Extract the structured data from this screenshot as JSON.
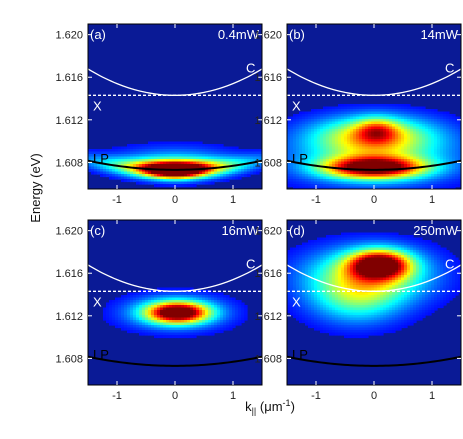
{
  "chart_data": {
    "type": "heatmap",
    "ylabel": "Energy (eV)",
    "xlabel_main": "k",
    "xlabel_sub": "||",
    "xlabel_unit_open": " (",
    "xlabel_unit_mu": "μm",
    "xlabel_unit_exp": "-1",
    "xlabel_unit_close": ")",
    "xlim": [
      -1.5,
      1.5
    ],
    "ylim": [
      1.6055,
      1.621
    ],
    "x_ticks": [
      -1,
      0,
      1
    ],
    "x_tick_labels": [
      "-1",
      "0",
      "1"
    ],
    "y_ticks": [
      1.608,
      1.612,
      1.616,
      1.62
    ],
    "y_tick_labels": [
      "1.608",
      "1.612",
      "1.616",
      "1.620"
    ],
    "exciton_energy": 1.6143,
    "cavity_curve": {
      "E0": 1.6143,
      "curvature": 0.0011
    },
    "lower_polariton_curve": {
      "E0": 1.6073,
      "curvature": 0.00038
    },
    "colors": {
      "background": "#0a1a96",
      "curve_upper": "#ffffff",
      "curve_lower": "#000000",
      "exciton_line": "#ffffff"
    },
    "panels": [
      {
        "label": "(a)",
        "power": "0.4mW",
        "curve_labels": {
          "C": "C",
          "X": "X",
          "LP": "LP"
        },
        "lp_label_dark": true,
        "emission": [
          {
            "x": 0.0,
            "y": 1.6073,
            "sx": 0.9,
            "sy": 0.0006,
            "amp": 0.7,
            "follow_lp": true
          },
          {
            "x": 0.0,
            "y": 1.6073,
            "sx": 0.35,
            "sy": 0.0005,
            "amp": 0.9,
            "follow_lp": true
          },
          {
            "x": 0.0,
            "y": 1.6083,
            "sx": 0.6,
            "sy": 0.0009,
            "amp": 0.2,
            "follow_lp": true
          }
        ]
      },
      {
        "label": "(b)",
        "power": "14mW",
        "curve_labels": {
          "C": "C",
          "X": "X",
          "LP": "LP"
        },
        "lp_label_dark": true,
        "emission": [
          {
            "x": 0.0,
            "y": 1.6075,
            "sx": 0.6,
            "sy": 0.0007,
            "amp": 0.95,
            "follow_lp": false
          },
          {
            "x": 0.0,
            "y": 1.6105,
            "sx": 0.75,
            "sy": 0.0013,
            "amp": 0.55,
            "follow_lp": false
          },
          {
            "x": 0.05,
            "y": 1.611,
            "sx": 0.25,
            "sy": 0.0008,
            "amp": 0.35,
            "follow_lp": false
          },
          {
            "x": 0.0,
            "y": 1.6083,
            "sx": 1.0,
            "sy": 0.0018,
            "amp": 0.3,
            "follow_lp": false
          }
        ]
      },
      {
        "label": "(c)",
        "power": "16mW",
        "curve_labels": {
          "C": "C",
          "X": "X",
          "LP": "LP"
        },
        "lp_label_dark": true,
        "emission": [
          {
            "x": 0.05,
            "y": 1.6123,
            "sx": 0.35,
            "sy": 0.00065,
            "amp": 0.95,
            "follow_lp": false
          },
          {
            "x": 0.0,
            "y": 1.6123,
            "sx": 0.6,
            "sy": 0.0011,
            "amp": 0.35,
            "follow_lp": false
          }
        ]
      },
      {
        "label": "(d)",
        "power": "250mW",
        "curve_labels": {
          "C": "C",
          "X": "X",
          "LP": "LP"
        },
        "lp_label_dark": true,
        "emission": [
          {
            "x": 0.1,
            "y": 1.6168,
            "sx": 0.35,
            "sy": 0.0009,
            "amp": 0.95,
            "follow_lp": false
          },
          {
            "x": -0.1,
            "y": 1.6158,
            "sx": 0.75,
            "sy": 0.0018,
            "amp": 0.5,
            "follow_lp": false
          },
          {
            "x": -0.3,
            "y": 1.6135,
            "sx": 0.55,
            "sy": 0.0017,
            "amp": 0.3,
            "follow_lp": false
          }
        ]
      }
    ]
  }
}
